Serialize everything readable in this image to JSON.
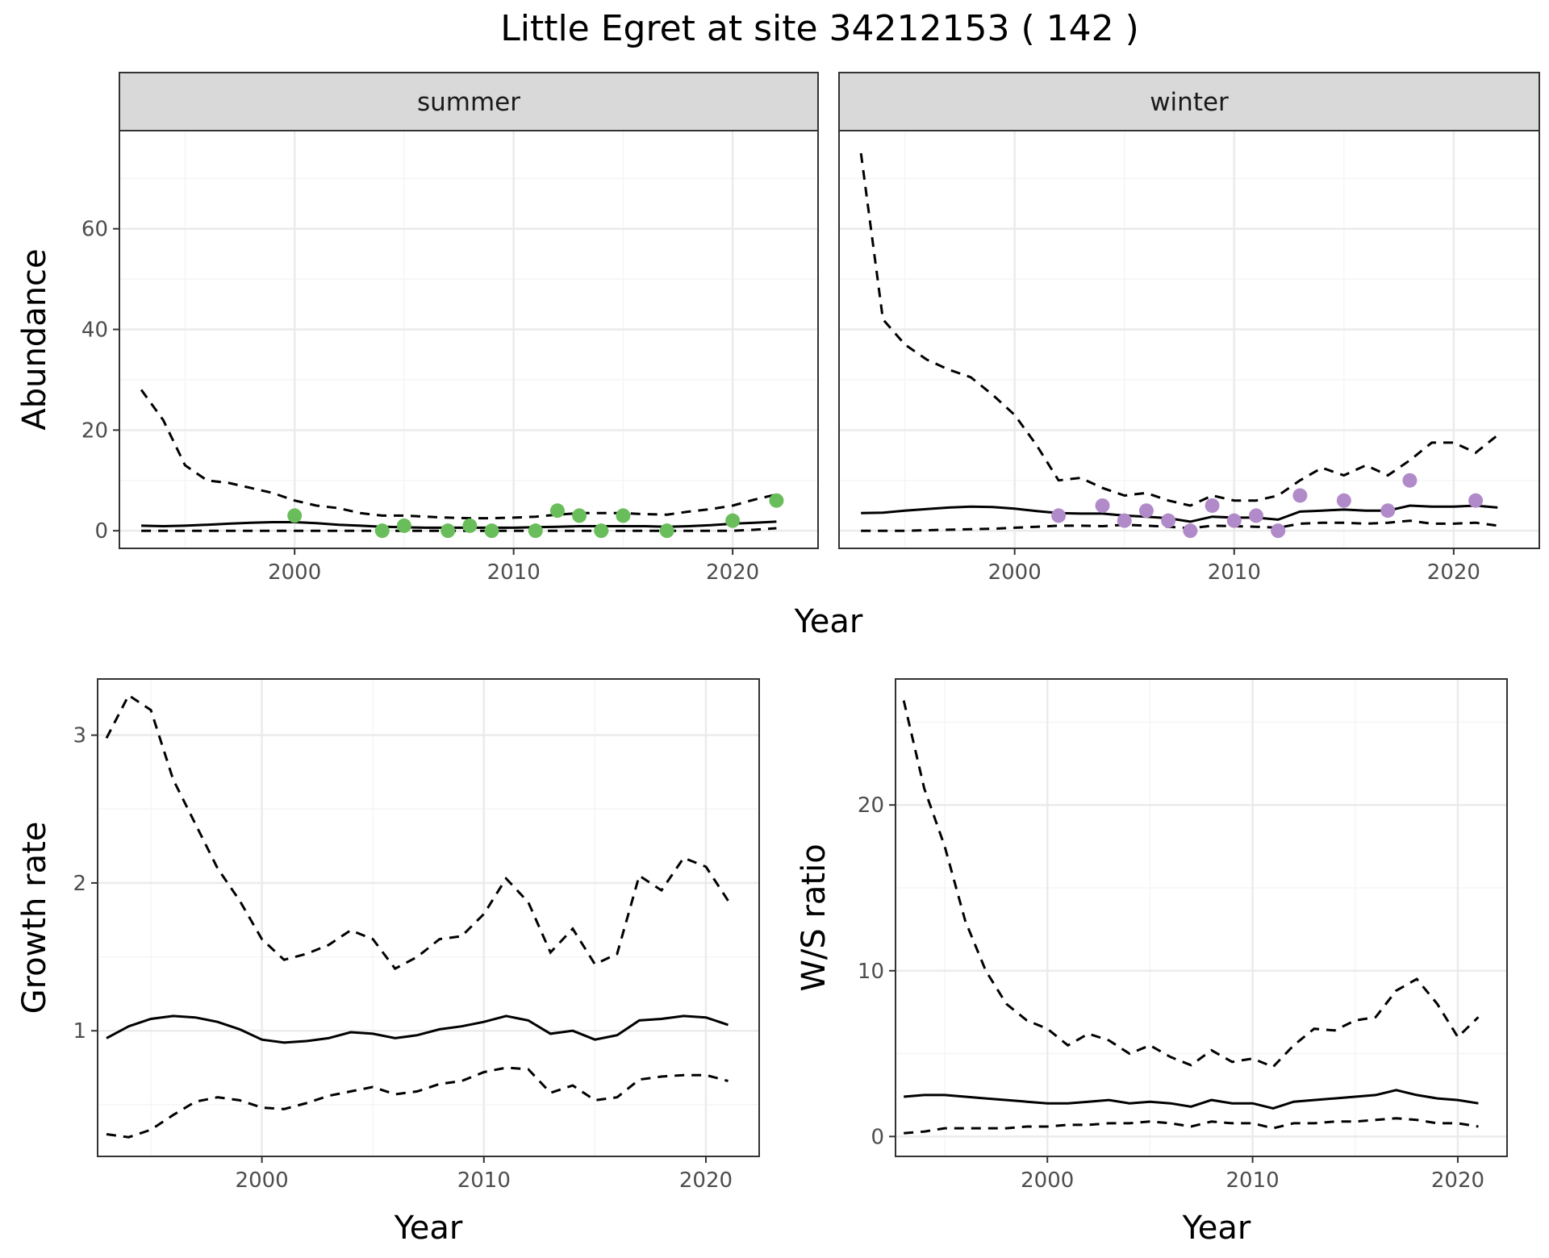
{
  "title": "Little Egret at site 34212153 ( 142 )",
  "colors": {
    "summer_points": "#6ABD5B",
    "winter_points": "#B18BC9",
    "line": "#000000",
    "strip_fill": "#D9D9D9",
    "grid_major": "#EBEBEB",
    "grid_minor": "#F5F5F5"
  },
  "chart_data": [
    {
      "id": "abundance-summer",
      "type": "line",
      "strip": "summer",
      "xlabel": "Year",
      "ylabel": "Abundance",
      "xlim": [
        1992.0,
        2023.9
      ],
      "ylim": [
        -3.5,
        79.5
      ],
      "xticks": [
        2000,
        2010,
        2020
      ],
      "yticks": [
        0,
        20,
        40,
        60
      ],
      "x": [
        1993,
        1994,
        1995,
        1996,
        1997,
        1998,
        1999,
        2000,
        2001,
        2002,
        2003,
        2004,
        2005,
        2006,
        2007,
        2008,
        2009,
        2010,
        2011,
        2012,
        2013,
        2014,
        2015,
        2016,
        2017,
        2018,
        2019,
        2020,
        2021,
        2022
      ],
      "series": [
        {
          "style": "solid",
          "values": [
            1.0,
            0.9,
            1.0,
            1.2,
            1.4,
            1.6,
            1.7,
            1.7,
            1.5,
            1.2,
            1.0,
            0.8,
            0.7,
            0.6,
            0.6,
            0.6,
            0.6,
            0.6,
            0.7,
            0.8,
            0.9,
            0.9,
            0.9,
            0.9,
            0.8,
            0.9,
            1.1,
            1.4,
            1.6,
            1.8
          ]
        },
        {
          "style": "dashed",
          "values": [
            28,
            22,
            13,
            10,
            9.5,
            8.5,
            7.5,
            6,
            5,
            4.5,
            3.5,
            3,
            3,
            2.8,
            2.6,
            2.5,
            2.5,
            2.6,
            2.8,
            3.2,
            3.5,
            3.5,
            3.5,
            3.3,
            3.2,
            3.8,
            4.3,
            5,
            6.2,
            7.2
          ]
        },
        {
          "style": "dashed",
          "values": [
            0,
            0,
            0,
            0,
            0,
            0,
            0,
            0,
            0,
            0,
            0,
            0,
            0,
            0,
            0,
            0,
            0,
            0,
            0,
            0,
            0,
            0,
            0,
            0,
            0,
            0,
            0,
            0,
            0.2,
            0.5
          ]
        }
      ],
      "points": [
        {
          "x": 2000,
          "y": 3
        },
        {
          "x": 2004,
          "y": 0
        },
        {
          "x": 2005,
          "y": 1
        },
        {
          "x": 2007,
          "y": 0
        },
        {
          "x": 2008,
          "y": 1
        },
        {
          "x": 2009,
          "y": 0
        },
        {
          "x": 2011,
          "y": 0
        },
        {
          "x": 2012,
          "y": 4
        },
        {
          "x": 2013,
          "y": 3
        },
        {
          "x": 2014,
          "y": 0
        },
        {
          "x": 2015,
          "y": 3
        },
        {
          "x": 2017,
          "y": 0
        },
        {
          "x": 2020,
          "y": 2
        },
        {
          "x": 2022,
          "y": 6
        }
      ]
    },
    {
      "id": "abundance-winter",
      "type": "line",
      "strip": "winter",
      "xlabel": "Year",
      "ylabel": "Abundance",
      "xlim": [
        1992.0,
        2023.9
      ],
      "ylim": [
        -3.5,
        79.5
      ],
      "xticks": [
        2000,
        2010,
        2020
      ],
      "yticks": [
        0,
        20,
        40,
        60
      ],
      "x": [
        1993,
        1994,
        1995,
        1996,
        1997,
        1998,
        1999,
        2000,
        2001,
        2002,
        2003,
        2004,
        2005,
        2006,
        2007,
        2008,
        2009,
        2010,
        2011,
        2012,
        2013,
        2014,
        2015,
        2016,
        2017,
        2018,
        2019,
        2020,
        2021,
        2022
      ],
      "series": [
        {
          "style": "solid",
          "values": [
            3.5,
            3.6,
            4.0,
            4.3,
            4.6,
            4.8,
            4.7,
            4.4,
            3.9,
            3.5,
            3.4,
            3.4,
            3.0,
            2.8,
            2.5,
            1.8,
            2.8,
            2.6,
            2.6,
            2.2,
            3.8,
            4.0,
            4.2,
            4.0,
            4.0,
            5.0,
            4.8,
            4.8,
            5.0,
            4.6
          ]
        },
        {
          "style": "dashed",
          "values": [
            75,
            42,
            37,
            34,
            32,
            30.5,
            27,
            23,
            17,
            10,
            10.5,
            8.5,
            7,
            7.5,
            6,
            5,
            7,
            6,
            6,
            7,
            10,
            12.5,
            11,
            13,
            11,
            14,
            17.5,
            17.5,
            15.5,
            19
          ]
        },
        {
          "style": "dashed",
          "values": [
            0,
            0,
            0,
            0.1,
            0.2,
            0.3,
            0.4,
            0.6,
            0.8,
            1.0,
            1.0,
            0.9,
            1.2,
            1.0,
            0.8,
            0.5,
            1.0,
            0.9,
            0.8,
            0.6,
            1.4,
            1.6,
            1.6,
            1.4,
            1.6,
            2.0,
            1.4,
            1.4,
            1.6,
            1.0
          ]
        }
      ],
      "points": [
        {
          "x": 2002,
          "y": 3
        },
        {
          "x": 2004,
          "y": 5
        },
        {
          "x": 2005,
          "y": 2
        },
        {
          "x": 2006,
          "y": 4
        },
        {
          "x": 2007,
          "y": 2
        },
        {
          "x": 2008,
          "y": 0
        },
        {
          "x": 2009,
          "y": 5
        },
        {
          "x": 2010,
          "y": 2
        },
        {
          "x": 2011,
          "y": 3
        },
        {
          "x": 2012,
          "y": 0
        },
        {
          "x": 2013,
          "y": 7
        },
        {
          "x": 2015,
          "y": 6
        },
        {
          "x": 2017,
          "y": 4
        },
        {
          "x": 2018,
          "y": 10
        },
        {
          "x": 2021,
          "y": 6
        }
      ]
    },
    {
      "id": "growth-rate",
      "type": "line",
      "xlabel": "Year",
      "ylabel": "Growth rate",
      "xlim": [
        1992.6,
        2022.4
      ],
      "ylim": [
        0.15,
        3.38
      ],
      "xticks": [
        2000,
        2010,
        2020
      ],
      "yticks": [
        1,
        2,
        3
      ],
      "x": [
        1993,
        1994,
        1995,
        1996,
        1997,
        1998,
        1999,
        2000,
        2001,
        2002,
        2003,
        2004,
        2005,
        2006,
        2007,
        2008,
        2009,
        2010,
        2011,
        2012,
        2013,
        2014,
        2015,
        2016,
        2017,
        2018,
        2019,
        2020,
        2021
      ],
      "series": [
        {
          "style": "solid",
          "values": [
            0.95,
            1.03,
            1.08,
            1.1,
            1.09,
            1.06,
            1.01,
            0.94,
            0.92,
            0.93,
            0.95,
            0.99,
            0.98,
            0.95,
            0.97,
            1.01,
            1.03,
            1.06,
            1.1,
            1.07,
            0.98,
            1.0,
            0.94,
            0.97,
            1.07,
            1.08,
            1.1,
            1.09,
            1.04
          ]
        },
        {
          "style": "dashed",
          "values": [
            2.98,
            3.27,
            3.17,
            2.7,
            2.4,
            2.1,
            1.88,
            1.62,
            1.48,
            1.52,
            1.58,
            1.68,
            1.62,
            1.42,
            1.5,
            1.62,
            1.64,
            1.79,
            2.03,
            1.87,
            1.53,
            1.69,
            1.45,
            1.52,
            2.05,
            1.95,
            2.17,
            2.11,
            1.88
          ]
        },
        {
          "style": "dashed",
          "values": [
            0.3,
            0.28,
            0.33,
            0.43,
            0.52,
            0.55,
            0.53,
            0.48,
            0.47,
            0.51,
            0.56,
            0.59,
            0.62,
            0.57,
            0.59,
            0.64,
            0.66,
            0.72,
            0.75,
            0.74,
            0.58,
            0.63,
            0.53,
            0.55,
            0.67,
            0.69,
            0.7,
            0.7,
            0.66
          ]
        }
      ]
    },
    {
      "id": "ws-ratio",
      "type": "line",
      "xlabel": "Year",
      "ylabel": "W/S ratio",
      "xlim": [
        1992.6,
        2022.4
      ],
      "ylim": [
        -1.2,
        27.6
      ],
      "xticks": [
        2000,
        2010,
        2020
      ],
      "yticks": [
        0,
        10,
        20
      ],
      "x": [
        1993,
        1994,
        1995,
        1996,
        1997,
        1998,
        1999,
        2000,
        2001,
        2002,
        2003,
        2004,
        2005,
        2006,
        2007,
        2008,
        2009,
        2010,
        2011,
        2012,
        2013,
        2014,
        2015,
        2016,
        2017,
        2018,
        2019,
        2020,
        2021
      ],
      "series": [
        {
          "style": "solid",
          "values": [
            2.4,
            2.5,
            2.5,
            2.4,
            2.3,
            2.2,
            2.1,
            2.0,
            2.0,
            2.1,
            2.2,
            2.0,
            2.1,
            2.0,
            1.8,
            2.2,
            2.0,
            2.0,
            1.7,
            2.1,
            2.2,
            2.3,
            2.4,
            2.5,
            2.8,
            2.5,
            2.3,
            2.2,
            2.0
          ]
        },
        {
          "style": "dashed",
          "values": [
            26.3,
            21,
            17.5,
            13,
            10,
            8,
            7,
            6.5,
            5.5,
            6.2,
            5.8,
            5.0,
            5.5,
            4.8,
            4.3,
            5.2,
            4.5,
            4.7,
            4.2,
            5.5,
            6.5,
            6.4,
            7.0,
            7.2,
            8.8,
            9.5,
            8,
            6,
            7.2
          ]
        },
        {
          "style": "dashed",
          "values": [
            0.2,
            0.3,
            0.5,
            0.5,
            0.5,
            0.5,
            0.6,
            0.6,
            0.7,
            0.7,
            0.8,
            0.8,
            0.9,
            0.8,
            0.6,
            0.9,
            0.8,
            0.8,
            0.5,
            0.8,
            0.8,
            0.9,
            0.9,
            1.0,
            1.1,
            1.0,
            0.8,
            0.8,
            0.6
          ]
        }
      ]
    }
  ]
}
